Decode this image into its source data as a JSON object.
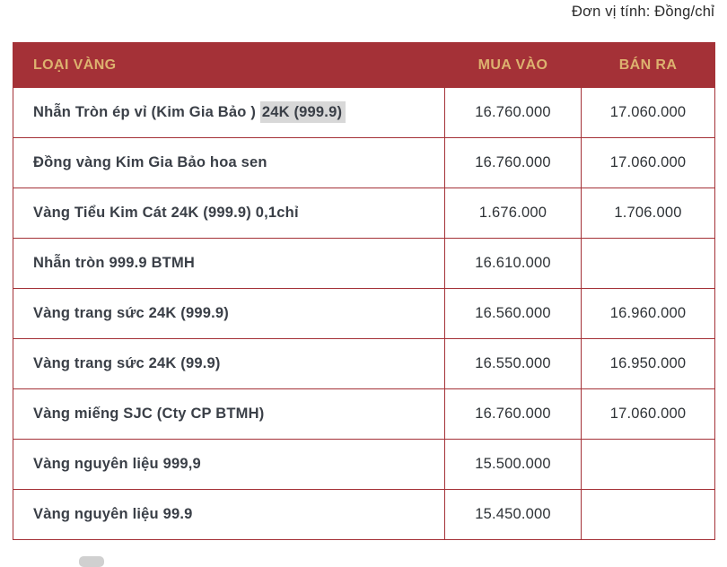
{
  "page": {
    "unit_label": "Đơn vị tính: Đồng/chỉ"
  },
  "table": {
    "columns": [
      "LOẠI VÀNG",
      "MUA VÀO",
      "BÁN RA"
    ],
    "rows": [
      {
        "name_parts": [
          {
            "text": "Nhẫn Tròn ép vỉ (Kim Gia Bảo ) ",
            "highlight": false
          },
          {
            "text": "24K (999.9)",
            "highlight": true
          }
        ],
        "buy": "16.760.000",
        "sell": "17.060.000"
      },
      {
        "name_parts": [
          {
            "text": "Đồng vàng Kim Gia Bảo hoa sen",
            "highlight": false
          }
        ],
        "buy": "16.760.000",
        "sell": "17.060.000"
      },
      {
        "name_parts": [
          {
            "text": "Vàng Tiểu Kim Cát 24K (999.9) 0,1chỉ",
            "highlight": false
          }
        ],
        "buy": "1.676.000",
        "sell": "1.706.000"
      },
      {
        "name_parts": [
          {
            "text": "Nhẫn tròn 999.9 BTMH",
            "highlight": false
          }
        ],
        "buy": "16.610.000",
        "sell": ""
      },
      {
        "name_parts": [
          {
            "text": "Vàng trang sức 24K (999.9)",
            "highlight": false
          }
        ],
        "buy": "16.560.000",
        "sell": "16.960.000"
      },
      {
        "name_parts": [
          {
            "text": "Vàng trang sức 24K (99.9)",
            "highlight": false
          }
        ],
        "buy": "16.550.000",
        "sell": "16.950.000"
      },
      {
        "name_parts": [
          {
            "text": "Vàng miếng SJC (Cty CP BTMH)",
            "highlight": false
          }
        ],
        "buy": "16.760.000",
        "sell": "17.060.000"
      },
      {
        "name_parts": [
          {
            "text": "Vàng nguyên liệu 999,9",
            "highlight": false
          }
        ],
        "buy": "15.500.000",
        "sell": ""
      },
      {
        "name_parts": [
          {
            "text": "Vàng nguyên liệu 99.9",
            "highlight": false
          }
        ],
        "buy": "15.450.000",
        "sell": ""
      }
    ],
    "colors": {
      "header_bg": "#a43137",
      "header_text": "#ddb26f",
      "border": "#a43137",
      "row_text": "#3a3f47",
      "num_text": "#2f3337",
      "highlight_bg": "#d8d8d8"
    }
  }
}
